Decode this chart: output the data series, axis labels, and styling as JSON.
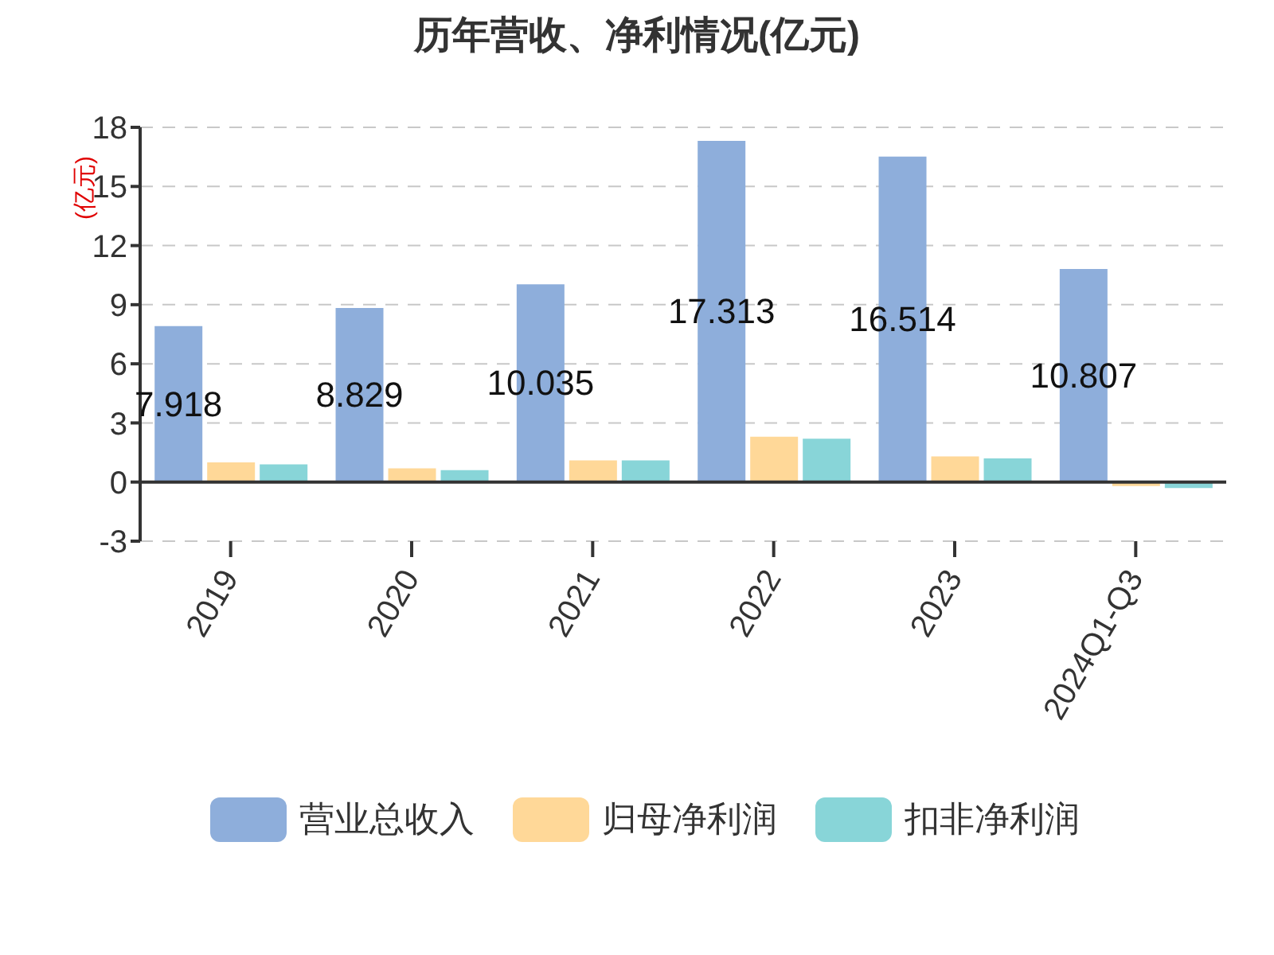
{
  "chart_data": {
    "type": "bar",
    "title": "历年营收、净利情况(亿元)",
    "ylabel": "(亿元)",
    "categories": [
      "2019",
      "2020",
      "2021",
      "2022",
      "2023",
      "2024Q1-Q3"
    ],
    "series": [
      {
        "name": "营业总收入",
        "color": "#8eaedb",
        "values": [
          7.918,
          8.829,
          10.035,
          17.313,
          16.514,
          10.807
        ],
        "value_labels": [
          "7.918",
          "8.829",
          "10.035",
          "17.313",
          "16.514",
          "10.807"
        ]
      },
      {
        "name": "归母净利润",
        "color": "#ffd898",
        "values": [
          1.0,
          0.7,
          1.1,
          2.3,
          1.3,
          -0.2
        ]
      },
      {
        "name": "扣非净利润",
        "color": "#88d5d8",
        "values": [
          0.9,
          0.6,
          1.1,
          2.2,
          1.2,
          -0.3
        ]
      }
    ],
    "ylim": [
      -3,
      18
    ],
    "yticks": [
      -3,
      0,
      3,
      6,
      9,
      12,
      15,
      18
    ],
    "grid": "y",
    "legend": "bottom"
  }
}
